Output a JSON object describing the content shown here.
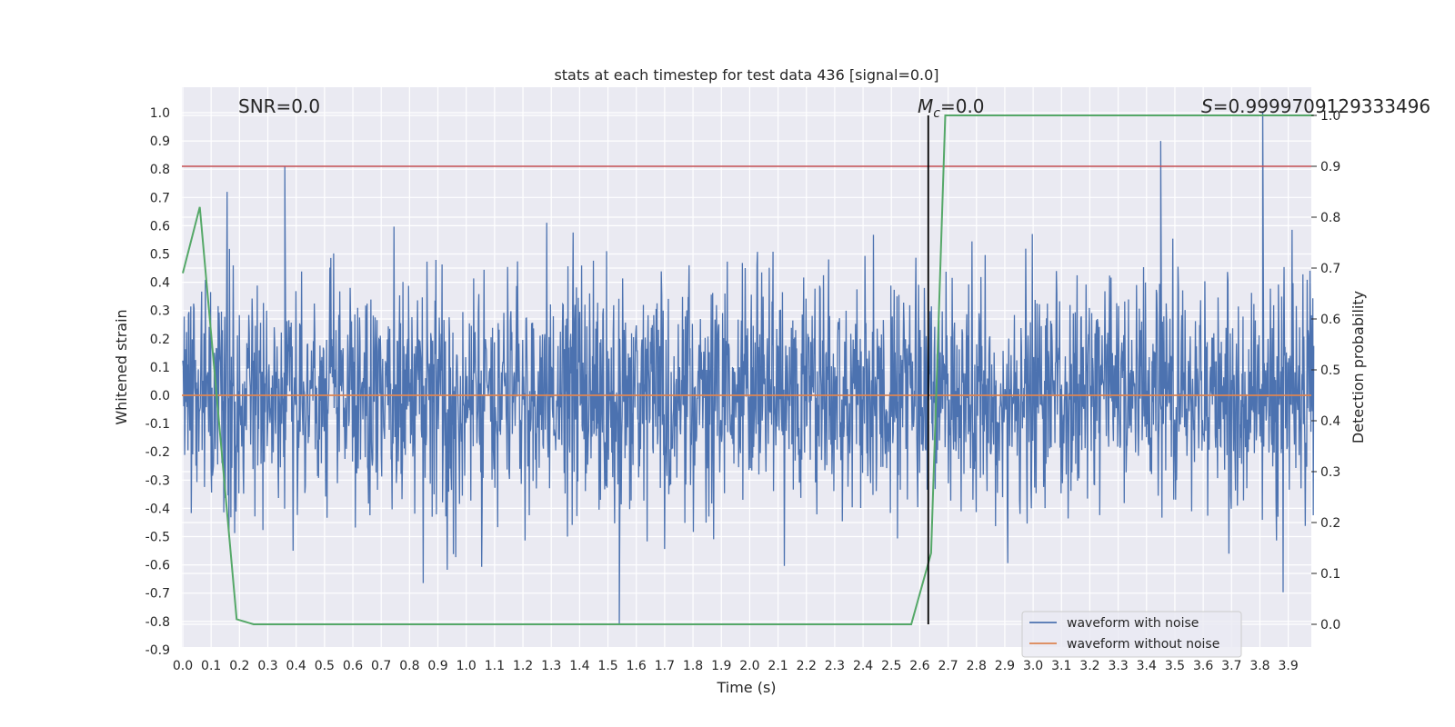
{
  "chart_data": {
    "type": "line",
    "title": "stats at each timestep for test data 436 [signal=0.0]",
    "xlabel": "Time (s)",
    "ylabel": "Whitened strain",
    "y2label": "Detection probability",
    "xlim": [
      0.0,
      3.99
    ],
    "ylim": [
      -0.9,
      1.09
    ],
    "y2lim": [
      -0.05,
      1.05
    ],
    "xticks": [
      "0.0",
      "0.1",
      "0.2",
      "0.3",
      "0.4",
      "0.5",
      "0.6",
      "0.7",
      "0.8",
      "0.9",
      "1.0",
      "1.1",
      "1.2",
      "1.3",
      "1.4",
      "1.5",
      "1.6",
      "1.7",
      "1.8",
      "1.9",
      "2.0",
      "2.1",
      "2.2",
      "2.3",
      "2.4",
      "2.5",
      "2.6",
      "2.7",
      "2.8",
      "2.9",
      "3.0",
      "3.1",
      "3.2",
      "3.3",
      "3.4",
      "3.5",
      "3.6",
      "3.7",
      "3.8",
      "3.9"
    ],
    "yticks": [
      "1.0",
      "0.9",
      "0.8",
      "0.7",
      "0.6",
      "0.5",
      "0.4",
      "0.3",
      "0.2",
      "0.1",
      "0.0",
      "-0.1",
      "-0.2",
      "-0.3",
      "-0.4",
      "-0.5",
      "-0.6",
      "-0.7",
      "-0.8",
      "-0.9"
    ],
    "y2ticks": [
      "1.0",
      "0.9",
      "0.8",
      "0.7",
      "0.6",
      "0.5",
      "0.4",
      "0.3",
      "0.2",
      "0.1",
      "0.0"
    ],
    "grid": true,
    "legend_position": "lower-right",
    "annotations": {
      "snr": "SNR=0.0",
      "mc": "M_c=0.0",
      "mc_base": "M",
      "mc_sub": "c",
      "mc_rest": "=0.0",
      "s": "S=0.9999709129333496",
      "s_letter": "S",
      "s_rest": "=0.9999709129333496"
    },
    "series": [
      {
        "name": "waveform with noise",
        "color": "#4c72b0",
        "note": "dense noise trace, approx. range -0.81 to 1.0",
        "peaks": [
          {
            "x": 0.36,
            "y": 0.81
          },
          {
            "x": 3.45,
            "y": 0.9
          },
          {
            "x": 3.81,
            "y": 1.0
          },
          {
            "x": 1.54,
            "y": -0.81
          }
        ]
      },
      {
        "name": "waveform without noise",
        "color": "#dd8452",
        "y_constant": 0.0
      }
    ],
    "detection_probability": {
      "color": "#55a868",
      "x": [
        0.0,
        0.06,
        0.19,
        0.25,
        2.57,
        2.64,
        2.69,
        3.99
      ],
      "y": [
        0.69,
        0.82,
        0.01,
        0.0,
        0.0,
        0.14,
        1.0,
        1.0
      ]
    },
    "threshold_line": {
      "axis": "y2",
      "value": 0.9,
      "color": "#c44e52"
    },
    "vertical_marker": {
      "x": 2.63,
      "y2_from": 0.0,
      "y2_to": 1.0,
      "color": "#000000"
    }
  }
}
